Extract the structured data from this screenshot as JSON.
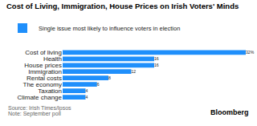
{
  "chart_data": {
    "type": "bar",
    "orientation": "horizontal",
    "title": "Cost of Living, Immigration, House Prices on Irish Voters' Minds",
    "categories": [
      "Cost of living",
      "Health",
      "House prices",
      "Immigration",
      "Rental costs",
      "The economy",
      "Taxation",
      "Climate change"
    ],
    "series": [
      {
        "name": "Single issue most likely to influence voters in election",
        "color": "#1f8ffb",
        "values": [
          32,
          16,
          16,
          12,
          8,
          6,
          4,
          4
        ],
        "value_labels": [
          "32%",
          "16",
          "16",
          "12",
          "8",
          "6",
          "4",
          "4"
        ]
      }
    ],
    "xlim": [
      0,
      32
    ],
    "data_labels": true,
    "tick_labels": "y",
    "grid": false,
    "legend": "top-left",
    "annotations": [
      "Source: Irish Times/Ipsos",
      "Note: September poll",
      "Bloomberg"
    ]
  }
}
